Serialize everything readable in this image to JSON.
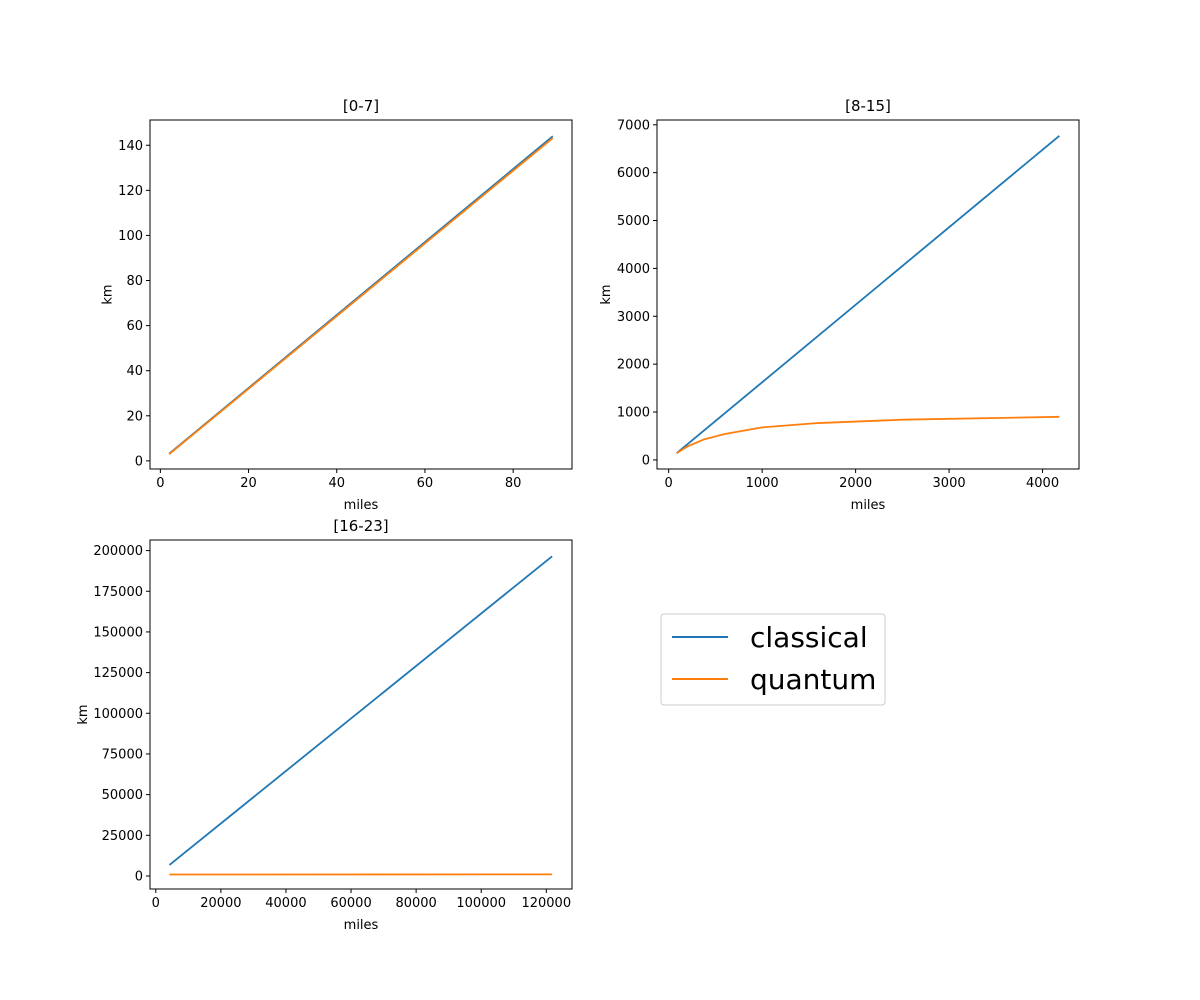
{
  "colors": {
    "classical": "#1f77b4",
    "quantum": "#ff7f0e"
  },
  "legend": {
    "placement": "right-of-third-plot",
    "entries": [
      "classical",
      "quantum"
    ]
  },
  "chart_data": [
    {
      "type": "line",
      "title": "[0-7]",
      "xlabel": "miles",
      "ylabel": "km",
      "xlim": [
        -2.35,
        93.35
      ],
      "ylim": [
        -3.6,
        151.2
      ],
      "xticks": [
        0,
        20,
        40,
        60,
        80
      ],
      "yticks": [
        0,
        20,
        40,
        60,
        80,
        100,
        120,
        140
      ],
      "grid": false,
      "series": [
        {
          "name": "classical",
          "x": [
            2,
            89
          ],
          "y": [
            3.2,
            144
          ]
        },
        {
          "name": "quantum",
          "x": [
            2,
            3,
            89
          ],
          "y": [
            3.0,
            4.6,
            143.2
          ]
        }
      ]
    },
    {
      "type": "line",
      "title": "[8-15]",
      "xlabel": "miles",
      "ylabel": "km",
      "xlim": [
        -125,
        4390
      ],
      "ylim": [
        -190,
        7100
      ],
      "xticks": [
        0,
        1000,
        2000,
        3000,
        4000
      ],
      "yticks": [
        0,
        1000,
        2000,
        3000,
        4000,
        5000,
        6000,
        7000
      ],
      "grid": false,
      "series": [
        {
          "name": "classical",
          "x": [
            85,
            4180
          ],
          "y": [
            140,
            6770
          ]
        },
        {
          "name": "quantum",
          "x": [
            85,
            200,
            380,
            600,
            1000,
            1600,
            2500,
            4180
          ],
          "y": [
            140,
            280,
            430,
            540,
            680,
            770,
            840,
            900
          ]
        }
      ]
    },
    {
      "type": "line",
      "title": "[16-23]",
      "xlabel": "miles",
      "ylabel": "km",
      "xlim": [
        -1780,
        127900
      ],
      "ylim": [
        -8000,
        206500
      ],
      "xticks": [
        0,
        20000,
        40000,
        60000,
        80000,
        100000,
        120000
      ],
      "yticks": [
        0,
        25000,
        50000,
        75000,
        100000,
        125000,
        150000,
        175000,
        200000
      ],
      "grid": false,
      "series": [
        {
          "name": "classical",
          "x": [
            4200,
            121800
          ],
          "y": [
            6800,
            196500
          ]
        },
        {
          "name": "quantum",
          "x": [
            4200,
            121800
          ],
          "y": [
            900,
            1000
          ]
        }
      ]
    }
  ]
}
